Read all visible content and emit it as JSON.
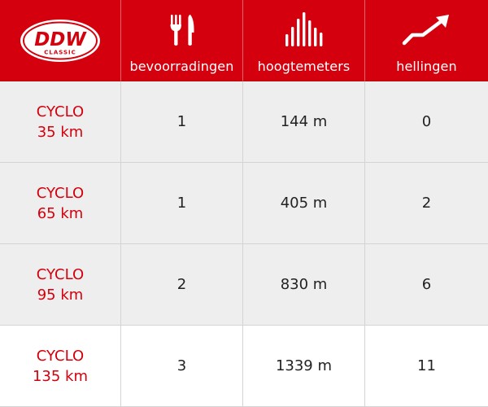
{
  "colors": {
    "brand_red": "#d4000d",
    "row_grey": "#eeeeee",
    "text_dark": "#222222"
  },
  "logo": {
    "main": "DDW",
    "sub": "CLASSIC"
  },
  "headers": [
    {
      "icon": "cutlery-icon",
      "label": "bevoorradingen"
    },
    {
      "icon": "elevation-bars-icon",
      "label": "hoogtemeters"
    },
    {
      "icon": "trend-up-arrow-icon",
      "label": "hellingen"
    }
  ],
  "rows": [
    {
      "type": "CYCLO",
      "distance": "35 km",
      "supplies": "1",
      "elevation": "144 m",
      "climbs": "0"
    },
    {
      "type": "CYCLO",
      "distance": "65 km",
      "supplies": "1",
      "elevation": "405 m",
      "climbs": "2"
    },
    {
      "type": "CYCLO",
      "distance": "95 km",
      "supplies": "2",
      "elevation": "830 m",
      "climbs": "6"
    },
    {
      "type": "CYCLO",
      "distance": "135 km",
      "supplies": "3",
      "elevation": "1339 m",
      "climbs": "11"
    }
  ]
}
